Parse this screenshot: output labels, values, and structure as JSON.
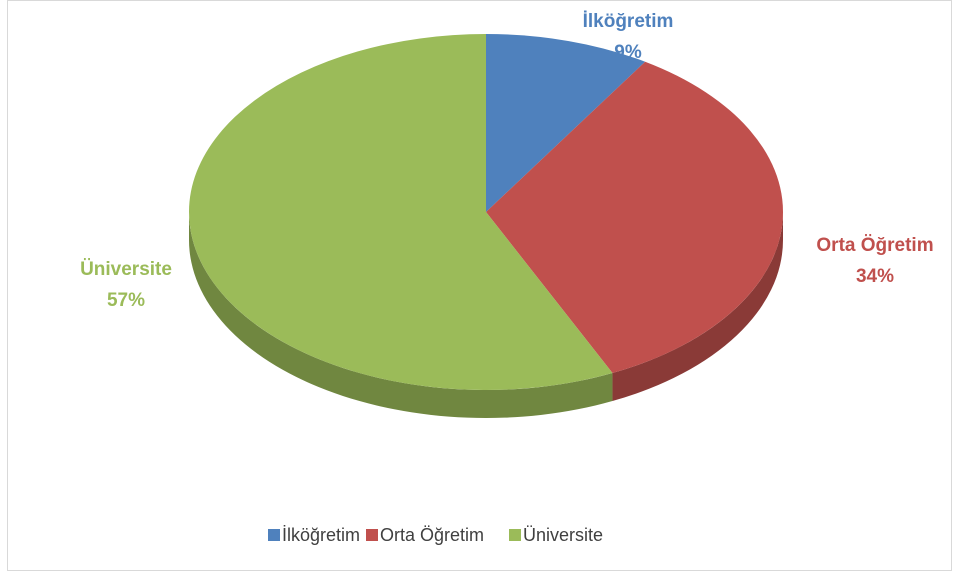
{
  "chart_data": {
    "type": "pie",
    "categories": [
      "İlköğretim",
      "Orta Öğretim",
      "Üniversite"
    ],
    "values": [
      9,
      34,
      57
    ],
    "value_labels": [
      "9%",
      "34%",
      "57%"
    ],
    "colors": [
      "#4f81bd",
      "#c0504d",
      "#9bbb59"
    ],
    "legend": "bottom"
  }
}
